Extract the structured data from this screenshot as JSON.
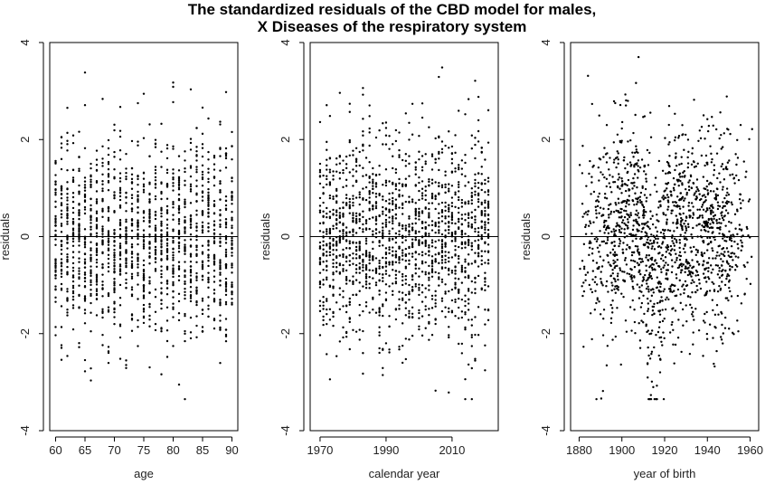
{
  "title_line1": "The standardized residuals of the CBD model for males,",
  "title_line2": "X Diseases of the respiratory system",
  "chart_data": [
    {
      "type": "scatter",
      "id": "age",
      "xlabel": "age",
      "ylabel": "residuals",
      "xlim": [
        59,
        91
      ],
      "ylim": [
        -4,
        4
      ],
      "x_ticks": [
        60,
        65,
        70,
        75,
        80,
        85,
        90
      ],
      "y_ticks": [
        -4,
        -2,
        0,
        2,
        4
      ],
      "reference_line_y": 0,
      "points": {
        "mode": "integer_columns",
        "x_values": [
          60,
          61,
          62,
          63,
          64,
          65,
          66,
          67,
          68,
          69,
          70,
          71,
          72,
          73,
          74,
          75,
          76,
          77,
          78,
          79,
          80,
          81,
          82,
          83,
          84,
          85,
          86,
          87,
          88,
          89,
          90
        ],
        "points_per_x": 50,
        "y_range": [
          -3.35,
          3.7
        ]
      }
    },
    {
      "type": "scatter",
      "id": "year",
      "xlabel": "calendar year",
      "ylabel": "residuals",
      "xlim": [
        1967,
        2024
      ],
      "ylim": [
        -4,
        4
      ],
      "x_ticks": [
        1970,
        1990,
        2010
      ],
      "y_ticks": [
        -4,
        -2,
        0,
        2,
        4
      ],
      "reference_line_y": 0,
      "points": {
        "mode": "integer_columns",
        "x_values": [
          1970,
          1971,
          1972,
          1973,
          1974,
          1975,
          1976,
          1977,
          1978,
          1979,
          1980,
          1981,
          1982,
          1983,
          1984,
          1985,
          1986,
          1987,
          1988,
          1989,
          1990,
          1991,
          1992,
          1993,
          1994,
          1995,
          1996,
          1997,
          1998,
          1999,
          2000,
          2001,
          2002,
          2003,
          2004,
          2005,
          2006,
          2007,
          2008,
          2009,
          2010,
          2011,
          2012,
          2013,
          2014,
          2015,
          2016,
          2017,
          2018,
          2019,
          2020,
          2021
        ],
        "points_per_x": 31,
        "y_range": [
          -3.35,
          3.7
        ]
      }
    },
    {
      "type": "scatter",
      "id": "cohort",
      "xlabel": "year of birth",
      "ylabel": "residuals",
      "xlim": [
        1876,
        1964
      ],
      "ylim": [
        -4,
        4
      ],
      "x_ticks": [
        1880,
        1900,
        1920,
        1940,
        1960
      ],
      "y_ticks": [
        -4,
        -2,
        0,
        2,
        4
      ],
      "reference_line_y": 0,
      "points": {
        "mode": "cohort_density",
        "x_range": [
          1880,
          1961
        ],
        "total_points": 1550,
        "y_range": [
          -3.35,
          3.7
        ]
      }
    }
  ]
}
